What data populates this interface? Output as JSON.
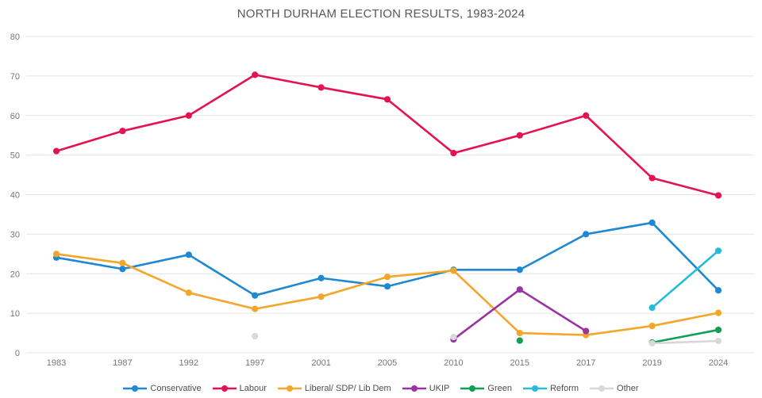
{
  "title": "NORTH DURHAM ELECTION RESULTS, 1983-2024",
  "chart_data": {
    "type": "line",
    "title": "NORTH DURHAM ELECTION RESULTS, 1983-2024",
    "categories": [
      "1983",
      "1987",
      "1992",
      "1997",
      "2001",
      "2005",
      "2010",
      "2015",
      "2017",
      "2019",
      "2024"
    ],
    "series": [
      {
        "name": "Conservative",
        "color": "#1e88d2",
        "values": [
          24.1,
          21.2,
          24.8,
          14.5,
          18.9,
          16.8,
          21.0,
          21.0,
          30.0,
          32.9,
          15.8
        ]
      },
      {
        "name": "Labour",
        "color": "#e4134f",
        "values": [
          51.0,
          56.1,
          60.0,
          70.3,
          67.1,
          64.1,
          50.5,
          55.0,
          60.0,
          44.2,
          39.8
        ]
      },
      {
        "name": "Liberal/ SDP/ Lib Dem",
        "color": "#f5a62a",
        "values": [
          25.0,
          22.7,
          15.2,
          11.1,
          14.2,
          19.2,
          20.8,
          5.0,
          4.5,
          6.8,
          10.1
        ]
      },
      {
        "name": "UKIP",
        "color": "#9933a3",
        "values": [
          null,
          null,
          null,
          null,
          null,
          null,
          3.4,
          16.0,
          5.5,
          null,
          null
        ]
      },
      {
        "name": "Green",
        "color": "#149e53",
        "values": [
          null,
          null,
          null,
          null,
          null,
          null,
          null,
          3.1,
          null,
          2.6,
          5.8
        ]
      },
      {
        "name": "Reform",
        "color": "#26bcd9",
        "values": [
          null,
          null,
          null,
          null,
          null,
          null,
          null,
          null,
          null,
          11.4,
          25.8
        ]
      },
      {
        "name": "Other",
        "color": "#d8d8d8",
        "values": [
          null,
          null,
          null,
          4.2,
          null,
          null,
          4.0,
          null,
          null,
          2.4,
          3.0
        ]
      }
    ],
    "ylim": [
      0,
      80
    ],
    "y_ticks": [
      0,
      10,
      20,
      30,
      40,
      50,
      60,
      70,
      80
    ],
    "grid": true,
    "legend_position": "bottom"
  }
}
